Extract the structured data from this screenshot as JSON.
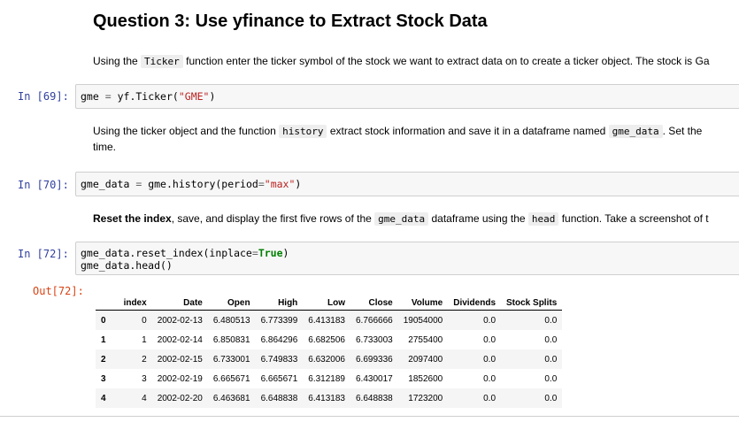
{
  "heading": "Question 3: Use yfinance to Extract Stock Data",
  "md1": {
    "pre": "Using the ",
    "code": "Ticker",
    "post": " function enter the ticker symbol of the stock we want to extract data on to create a ticker object. The stock is Ga"
  },
  "cells": [
    {
      "prompt": "In [69]:",
      "code": {
        "var": "gme",
        "op": "=",
        "call": "yf.Ticker(",
        "str": "\"GME\"",
        "close": ")"
      }
    },
    {
      "prompt": "In [70]:",
      "code": {
        "var": "gme_data",
        "op": "=",
        "call": "gme.history(period",
        "op2": "=",
        "str": "\"max\"",
        "close": ")"
      }
    },
    {
      "prompt": "In [72]:",
      "line1_pre": "gme_data.reset_index(inplace",
      "line1_op": "=",
      "line1_kw": "True",
      "line1_close": ")",
      "line2": "gme_data.head()"
    }
  ],
  "md2": {
    "pre": "Using the ticker object and the function ",
    "code1": "history",
    "mid": " extract stock information and save it in a dataframe named ",
    "code2": "gme_data",
    "post": ". Set the",
    "line2": "time."
  },
  "md3": {
    "bold": "Reset the index",
    "pre": ", save, and display the first five rows of the ",
    "code1": "gme_data",
    "mid": " dataframe using the ",
    "code2": "head",
    "post": " function. Take a screenshot of t"
  },
  "output": {
    "prompt": "Out[72]:",
    "columns": [
      "",
      "index",
      "Date",
      "Open",
      "High",
      "Low",
      "Close",
      "Volume",
      "Dividends",
      "Stock Splits"
    ],
    "rows": [
      [
        "0",
        "0",
        "2002-02-13",
        "6.480513",
        "6.773399",
        "6.413183",
        "6.766666",
        "19054000",
        "0.0",
        "0.0"
      ],
      [
        "1",
        "1",
        "2002-02-14",
        "6.850831",
        "6.864296",
        "6.682506",
        "6.733003",
        "2755400",
        "0.0",
        "0.0"
      ],
      [
        "2",
        "2",
        "2002-02-15",
        "6.733001",
        "6.749833",
        "6.632006",
        "6.699336",
        "2097400",
        "0.0",
        "0.0"
      ],
      [
        "3",
        "3",
        "2002-02-19",
        "6.665671",
        "6.665671",
        "6.312189",
        "6.430017",
        "1852600",
        "0.0",
        "0.0"
      ],
      [
        "4",
        "4",
        "2002-02-20",
        "6.463681",
        "6.648838",
        "6.413183",
        "6.648838",
        "1723200",
        "0.0",
        "0.0"
      ]
    ]
  }
}
